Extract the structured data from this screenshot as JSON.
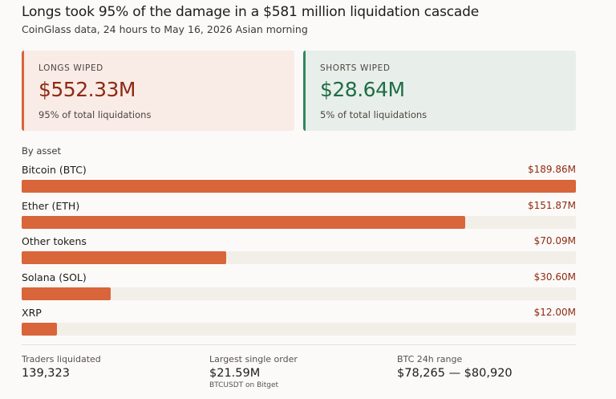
{
  "header": {
    "title": "Longs took 95% of the damage in a $581 million liquidation cascade",
    "subtitle": "CoinGlass data, 24 hours to May 16, 2026 Asian morning"
  },
  "cards": {
    "longs": {
      "label": "LONGS WIPED",
      "value": "$552.33M",
      "sub": "95% of total liquidations",
      "accent": "#d9653a"
    },
    "shorts": {
      "label": "SHORTS WIPED",
      "value": "$28.64M",
      "sub": "5% of total liquidations",
      "accent": "#2f8a5c"
    }
  },
  "section_label": "By asset",
  "chart_data": {
    "type": "bar",
    "orientation": "horizontal",
    "categories": [
      "Bitcoin (BTC)",
      "Ether (ETH)",
      "Other tokens",
      "Solana (SOL)",
      "XRP"
    ],
    "values": [
      189.86,
      151.87,
      70.09,
      30.6,
      12.0
    ],
    "value_labels": [
      "$189.86M",
      "$151.87M",
      "$70.09M",
      "$30.60M",
      "$12.00M"
    ],
    "unit": "$M",
    "xlim": [
      0,
      189.86
    ],
    "bar_color": "#d9653a",
    "track_color": "#f2efe9"
  },
  "stats": {
    "traders": {
      "label": "Traders liquidated",
      "value": "139,323"
    },
    "largest_order": {
      "label": "Largest single order",
      "value": "$21.59M",
      "note": "BTCUSDT on Bitget"
    },
    "btc_range": {
      "label": "BTC 24h range",
      "value": "$78,265 — $80,920"
    }
  }
}
